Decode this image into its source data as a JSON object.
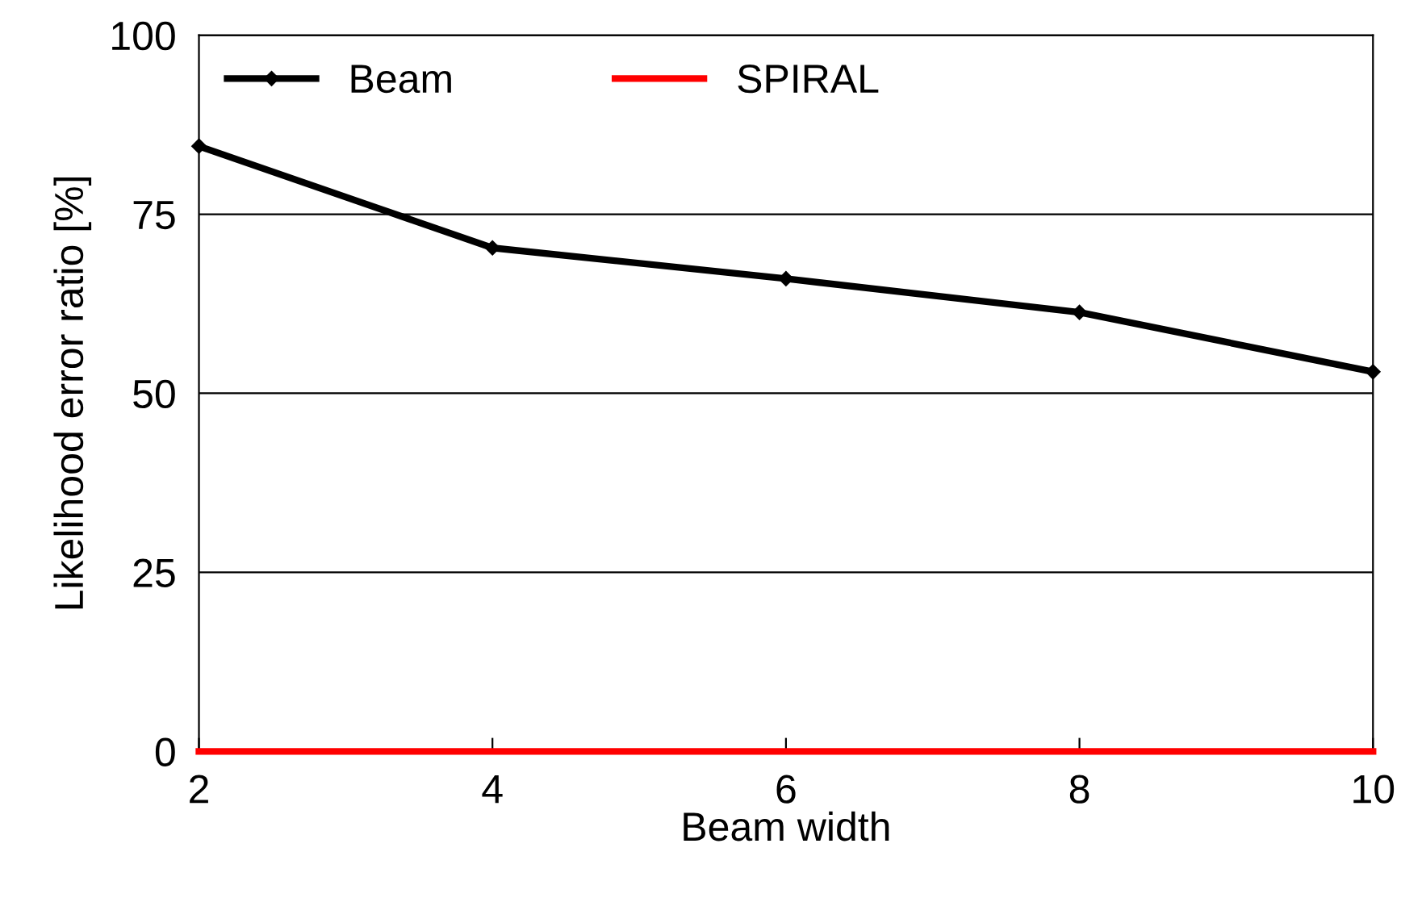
{
  "chart_data": {
    "type": "line",
    "xlabel": "Beam width",
    "ylabel": "Likelihood error ratio [%]",
    "x": [
      2,
      4,
      6,
      8,
      10
    ],
    "series": [
      {
        "name": "Beam",
        "color": "#000000",
        "values": [
          84.5,
          70.3,
          66,
          61.3,
          53
        ],
        "marker": "diamond"
      },
      {
        "name": "SPIRAL",
        "color": "#ff0000",
        "values": [
          0,
          0,
          0,
          0,
          0
        ],
        "marker": "none"
      }
    ],
    "xlim": [
      2,
      10
    ],
    "xticks": [
      2,
      4,
      6,
      8,
      10
    ],
    "ylim": [
      0,
      100
    ],
    "yticks": [
      0,
      25,
      50,
      75,
      100
    ],
    "grid": "y",
    "legend": "top left",
    "line_style": "solid"
  }
}
